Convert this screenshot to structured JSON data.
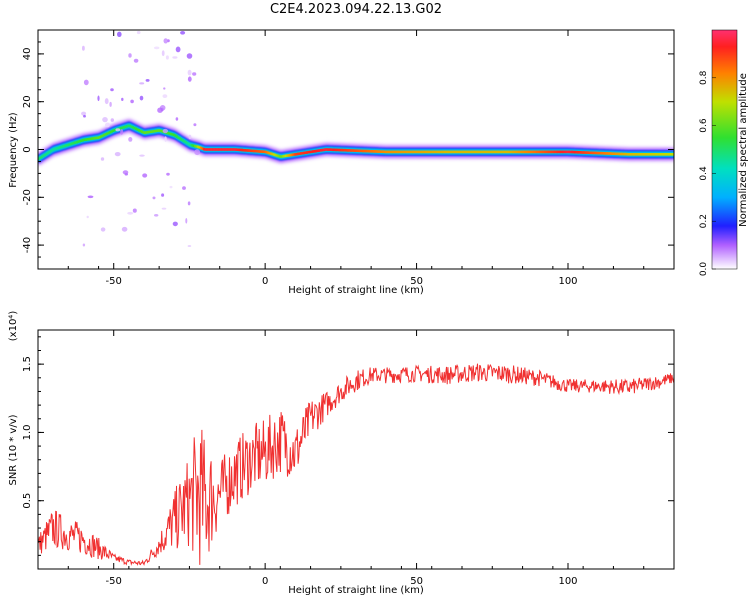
{
  "figure": {
    "title": "C2E4.2023.094.22.13.G02"
  },
  "colors": {
    "snr_line": "#f03030",
    "frame": "#000000",
    "colormap": [
      "#ffffff",
      "#e8d0ff",
      "#b060ff",
      "#2020ff",
      "#00b0ff",
      "#00e0c0",
      "#30e030",
      "#c0e000",
      "#ff8000",
      "#ff2020",
      "#ff3070"
    ]
  },
  "chart_data": [
    {
      "type": "heatmap",
      "title": "",
      "xlabel": "Height of straight line (km)",
      "ylabel": "Frequency (Hz)",
      "xlim": [
        -75,
        135
      ],
      "ylim": [
        -50,
        50
      ],
      "xticks": [
        -50,
        0,
        50,
        100
      ],
      "yticks": [
        -40,
        -20,
        0,
        20,
        40
      ],
      "colorbar": {
        "label": "Normalized spectral amplitude",
        "range": [
          0.0,
          1.0
        ],
        "ticks": [
          "0.0",
          "0.2",
          "0.4",
          "0.6",
          "0.8"
        ],
        "tick_values": [
          0.0,
          0.2,
          0.4,
          0.6,
          0.8
        ]
      },
      "ridge_x": [
        -75,
        -70,
        -65,
        -60,
        -55,
        -50,
        -45,
        -40,
        -35,
        -30,
        -25,
        -22,
        -20,
        -10,
        0,
        5,
        10,
        20,
        40,
        60,
        80,
        100,
        120,
        135
      ],
      "ridge_f": [
        -4,
        0,
        2,
        4,
        5,
        8,
        10,
        7,
        8,
        6,
        2,
        1,
        0,
        0,
        -1,
        -3,
        -2,
        0,
        -1,
        -1,
        -1,
        -1,
        -2,
        -2
      ],
      "ridge_amplitude": [
        0.5,
        0.45,
        0.5,
        0.55,
        0.6,
        0.55,
        0.5,
        0.6,
        0.6,
        0.55,
        0.45,
        0.7,
        0.95,
        0.95,
        0.85,
        0.6,
        0.9,
        0.95,
        0.8,
        0.75,
        0.75,
        0.95,
        0.75,
        0.7
      ]
    },
    {
      "type": "line",
      "title": "",
      "xlabel": "Height of straight line (km)",
      "ylabel": "SNR (10 * v/v)",
      "y_multiplier": "(x10⁴)",
      "xlim": [
        -75,
        135
      ],
      "ylim": [
        0,
        17500
      ],
      "xticks": [
        -50,
        0,
        50,
        100
      ],
      "yticks": [
        5000,
        10000,
        15000
      ],
      "ytick_labels": [
        "0.5",
        "1.0",
        "1.5"
      ],
      "series": [
        {
          "envelope_x": [
            -75,
            -70,
            -65,
            -60,
            -55,
            -50,
            -45,
            -40,
            -35,
            -30,
            -25,
            -22,
            -20,
            -15,
            -10,
            -5,
            0,
            5,
            10,
            15,
            20,
            25,
            30,
            35,
            40,
            50,
            60,
            70,
            80,
            90,
            100,
            110,
            120,
            130,
            135
          ],
          "envelope_y": [
            1700,
            3000,
            2500,
            2200,
            1500,
            800,
            500,
            400,
            1800,
            3500,
            5000,
            5500,
            5000,
            5500,
            7000,
            8000,
            8500,
            9500,
            8500,
            11000,
            12000,
            13000,
            13800,
            14200,
            14200,
            14300,
            14200,
            14400,
            14300,
            14000,
            13400,
            13400,
            13300,
            13700,
            14000
          ],
          "noise_amplitude": [
            800,
            1500,
            1200,
            1200,
            800,
            300,
            200,
            200,
            800,
            2200,
            3500,
            5500,
            5000,
            2500,
            2500,
            2500,
            2500,
            2500,
            2000,
            1500,
            1000,
            800,
            800,
            600,
            600,
            600,
            700,
            700,
            700,
            600,
            500,
            500,
            600,
            500,
            400
          ]
        }
      ]
    }
  ]
}
